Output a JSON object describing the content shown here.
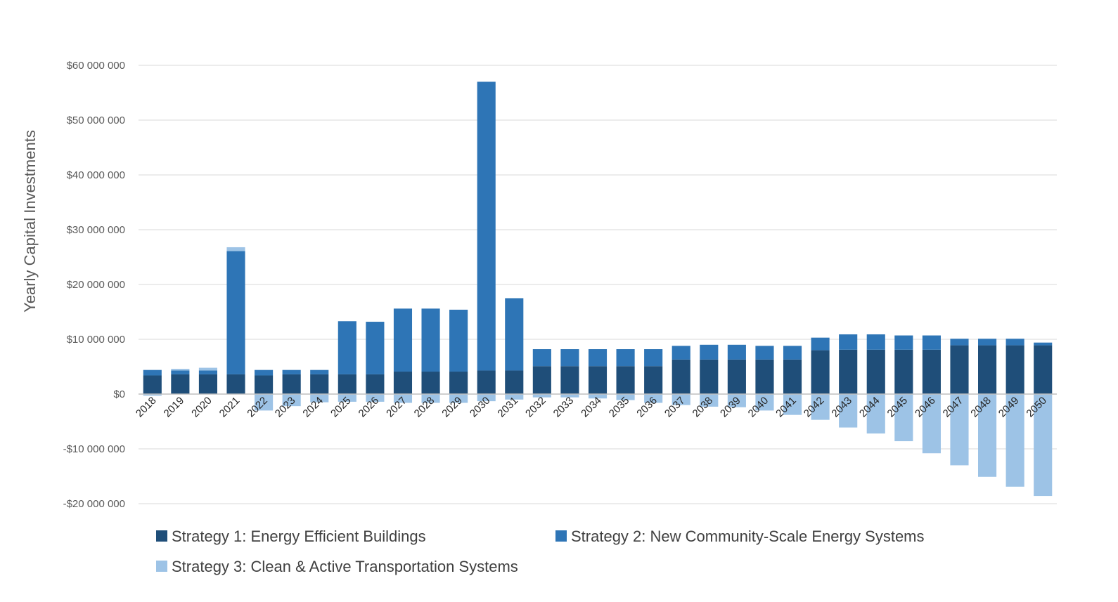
{
  "chart_data": {
    "type": "bar",
    "stacked": true,
    "title": "",
    "xlabel": "",
    "ylabel": "Yearly Capital Investments",
    "ylim": [
      -20000000,
      60000000
    ],
    "yticks": [
      60000000,
      50000000,
      40000000,
      30000000,
      20000000,
      10000000,
      0,
      -10000000,
      -20000000
    ],
    "ytick_labels": [
      "$60 000 000",
      "$50 000 000",
      "$40 000 000",
      "$30 000 000",
      "$20 000 000",
      "$10 000 000",
      "$0",
      "-$10 000 000",
      "-$20 000 000"
    ],
    "grid": "horizontal",
    "legend_position": "bottom",
    "categories": [
      "2018",
      "2019",
      "2020",
      "2021",
      "2022",
      "2023",
      "2024",
      "2025",
      "2026",
      "2027",
      "2028",
      "2029",
      "2030",
      "2031",
      "2032",
      "2033",
      "2034",
      "2035",
      "2036",
      "2037",
      "2038",
      "2039",
      "2040",
      "2041",
      "2042",
      "2043",
      "2044",
      "2045",
      "2046",
      "2047",
      "2048",
      "2049",
      "2050"
    ],
    "series": [
      {
        "name": "Strategy 1: Energy Efficient Buildings",
        "color": "#1f4e79",
        "values": [
          3400000,
          3600000,
          3600000,
          3600000,
          3400000,
          3600000,
          3600000,
          3600000,
          3600000,
          4100000,
          4100000,
          4100000,
          4300000,
          4300000,
          5100000,
          5100000,
          5100000,
          5100000,
          5100000,
          6300000,
          6300000,
          6300000,
          6300000,
          6300000,
          8000000,
          8100000,
          8100000,
          8100000,
          8100000,
          8900000,
          8900000,
          8900000,
          8900000
        ]
      },
      {
        "name": "Strategy 2: New Community-Scale Energy Systems",
        "color": "#2e75b6",
        "values": [
          1000000,
          700000,
          700000,
          22500000,
          1000000,
          800000,
          800000,
          9700000,
          9600000,
          11500000,
          11500000,
          11300000,
          52700000,
          13200000,
          3100000,
          3100000,
          3100000,
          3100000,
          3100000,
          2500000,
          2700000,
          2700000,
          2500000,
          2500000,
          2300000,
          2800000,
          2800000,
          2600000,
          2600000,
          1200000,
          1200000,
          1200000,
          500000
        ]
      },
      {
        "name": "Strategy 3: Clean & Active Transportation Systems",
        "color": "#9dc3e6",
        "values": [
          -300000,
          300000,
          500000,
          700000,
          -3000000,
          -2200000,
          -1500000,
          -1400000,
          -1400000,
          -1600000,
          -1600000,
          -1600000,
          -1300000,
          -1000000,
          -600000,
          -600000,
          -800000,
          -1100000,
          -1600000,
          -2000000,
          -2300000,
          -2400000,
          -3000000,
          -3800000,
          -4700000,
          -6100000,
          -7200000,
          -8600000,
          -10800000,
          -13000000,
          -15100000,
          -16900000,
          -18600000
        ]
      }
    ]
  }
}
